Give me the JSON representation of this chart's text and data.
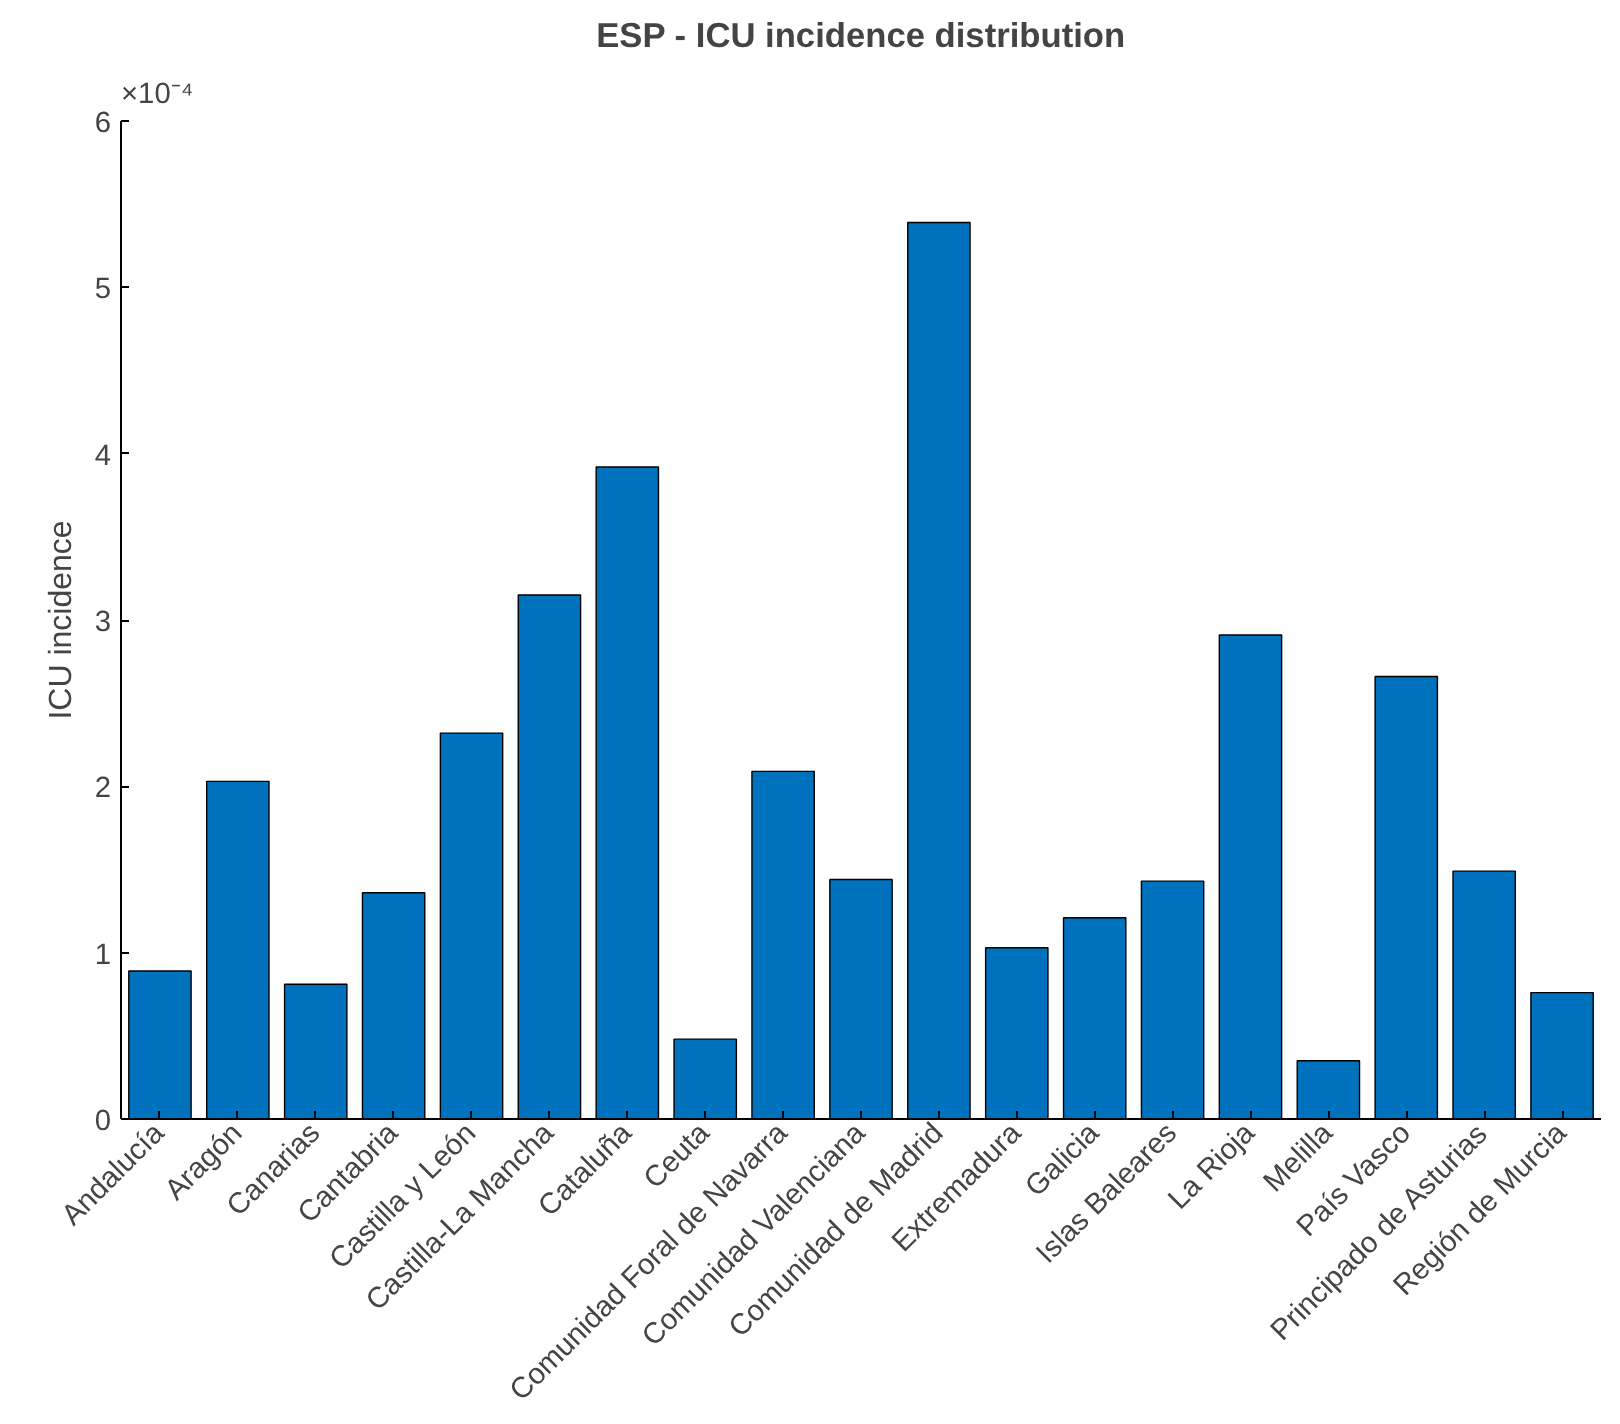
{
  "chart_data": {
    "type": "bar",
    "title": "ESP - ICU incidence distribution",
    "ylabel": "ICU incidence",
    "categories": [
      "Andalucía",
      "Aragón",
      "Canarias",
      "Cantabria",
      "Castilla y León",
      "Castilla-La Mancha",
      "Cataluña",
      "Ceuta",
      "Comunidad Foral de Navarra",
      "Comunidad Valenciana",
      "Comunidad de Madrid",
      "Extremadura",
      "Galicia",
      "Islas Baleares",
      "La Rioja",
      "Melilla",
      "País Vasco",
      "Principado de Asturias",
      "Región de Murcia"
    ],
    "values": [
      0.89,
      2.03,
      0.81,
      1.36,
      2.32,
      3.15,
      3.92,
      0.48,
      2.09,
      1.44,
      5.39,
      1.03,
      1.21,
      1.43,
      2.91,
      0.35,
      2.66,
      1.49,
      0.76
    ],
    "color": "#0072bd",
    "ylim": [
      0,
      6
    ],
    "yticks": [
      0,
      1,
      2,
      3,
      4,
      5,
      6
    ],
    "annotations": [
      "×10⁻⁴"
    ],
    "grid": false
  }
}
